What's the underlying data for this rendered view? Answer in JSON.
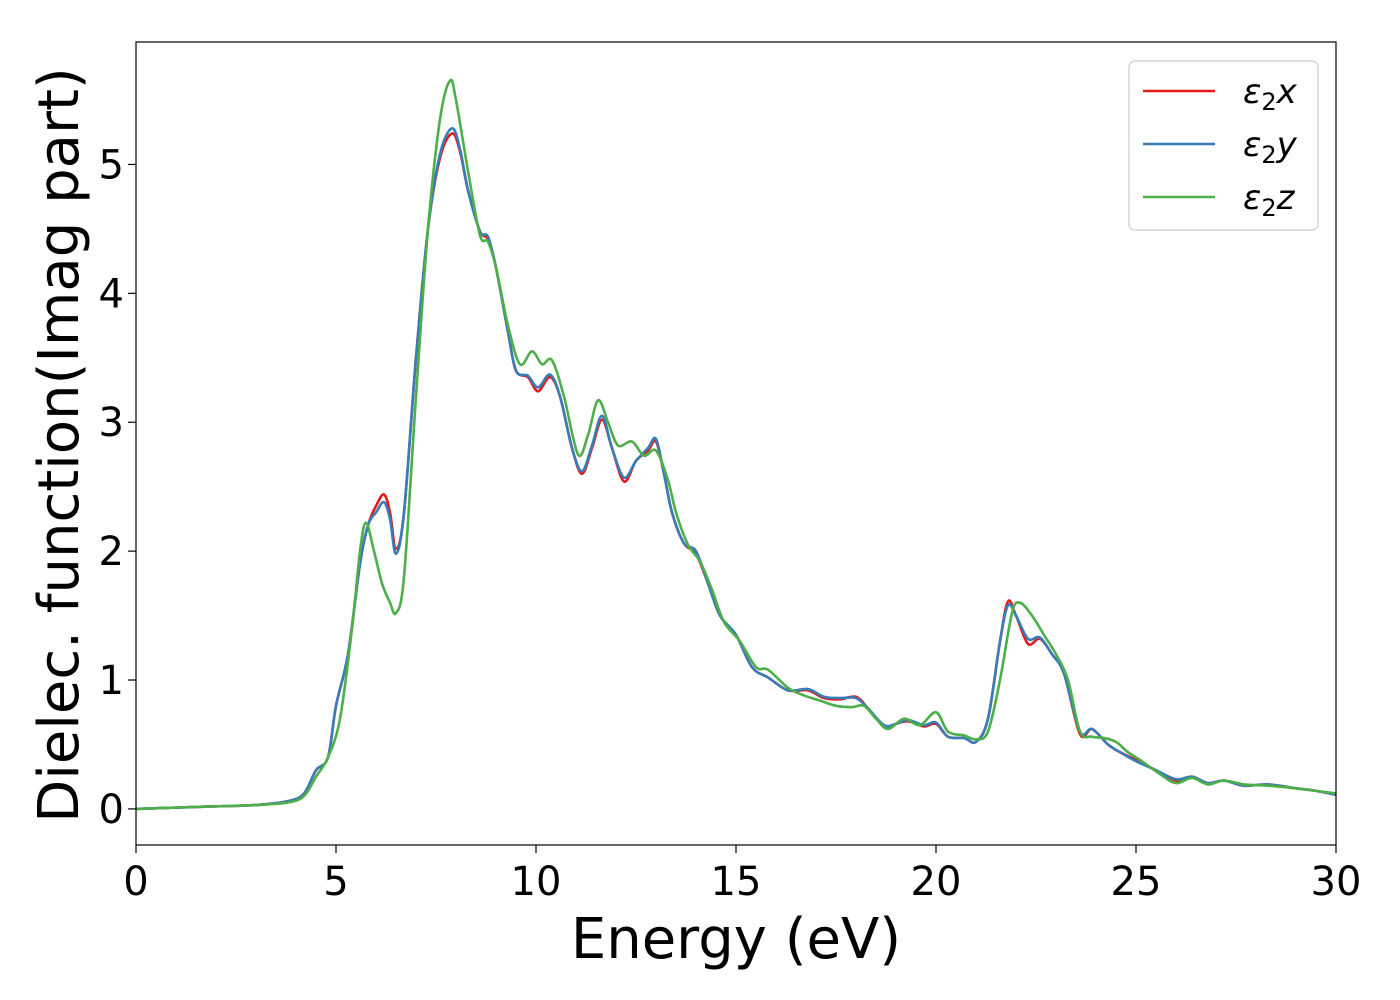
{
  "chart_data": {
    "type": "line",
    "xlabel": "Energy (eV)",
    "ylabel": "Dielec. function(Imag part)",
    "xlim": [
      0,
      30
    ],
    "ylim": [
      -0.28,
      5.95
    ],
    "xticks": [
      0,
      5,
      10,
      15,
      20,
      25,
      30
    ],
    "yticks": [
      0,
      1,
      2,
      3,
      4,
      5
    ],
    "grid": false,
    "legend_position": "top-right",
    "series": [
      {
        "name": "ε2x",
        "name_base": "ε",
        "name_sub": "2",
        "name_tail": "x",
        "color": "#e41a1c",
        "points": [
          [
            0,
            0.0
          ],
          [
            1,
            0.01
          ],
          [
            2,
            0.02
          ],
          [
            3,
            0.03
          ],
          [
            3.8,
            0.06
          ],
          [
            4.2,
            0.12
          ],
          [
            4.5,
            0.3
          ],
          [
            4.8,
            0.4
          ],
          [
            5.0,
            0.8
          ],
          [
            5.3,
            1.2
          ],
          [
            5.6,
            1.9
          ],
          [
            5.8,
            2.2
          ],
          [
            6.0,
            2.35
          ],
          [
            6.2,
            2.44
          ],
          [
            6.35,
            2.3
          ],
          [
            6.5,
            2.02
          ],
          [
            6.7,
            2.3
          ],
          [
            7.0,
            3.5
          ],
          [
            7.3,
            4.5
          ],
          [
            7.6,
            5.05
          ],
          [
            7.9,
            5.24
          ],
          [
            8.1,
            5.1
          ],
          [
            8.3,
            4.8
          ],
          [
            8.6,
            4.48
          ],
          [
            8.8,
            4.42
          ],
          [
            9.0,
            4.2
          ],
          [
            9.3,
            3.7
          ],
          [
            9.5,
            3.4
          ],
          [
            9.8,
            3.35
          ],
          [
            10.05,
            3.24
          ],
          [
            10.35,
            3.35
          ],
          [
            10.6,
            3.2
          ],
          [
            10.9,
            2.8
          ],
          [
            11.15,
            2.6
          ],
          [
            11.4,
            2.8
          ],
          [
            11.65,
            3.02
          ],
          [
            11.9,
            2.8
          ],
          [
            12.2,
            2.54
          ],
          [
            12.5,
            2.7
          ],
          [
            12.8,
            2.78
          ],
          [
            13.0,
            2.85
          ],
          [
            13.2,
            2.6
          ],
          [
            13.4,
            2.3
          ],
          [
            13.7,
            2.06
          ],
          [
            14.0,
            1.98
          ],
          [
            14.3,
            1.75
          ],
          [
            14.6,
            1.5
          ],
          [
            15.0,
            1.35
          ],
          [
            15.4,
            1.1
          ],
          [
            15.8,
            1.02
          ],
          [
            16.3,
            0.92
          ],
          [
            16.8,
            0.92
          ],
          [
            17.2,
            0.86
          ],
          [
            17.6,
            0.85
          ],
          [
            18.0,
            0.87
          ],
          [
            18.3,
            0.78
          ],
          [
            18.7,
            0.64
          ],
          [
            19.0,
            0.66
          ],
          [
            19.3,
            0.68
          ],
          [
            19.7,
            0.64
          ],
          [
            20.0,
            0.66
          ],
          [
            20.3,
            0.56
          ],
          [
            20.7,
            0.55
          ],
          [
            21.0,
            0.52
          ],
          [
            21.3,
            0.7
          ],
          [
            21.6,
            1.3
          ],
          [
            21.8,
            1.61
          ],
          [
            22.0,
            1.5
          ],
          [
            22.3,
            1.28
          ],
          [
            22.6,
            1.32
          ],
          [
            22.9,
            1.2
          ],
          [
            23.2,
            1.05
          ],
          [
            23.6,
            0.58
          ],
          [
            23.9,
            0.62
          ],
          [
            24.3,
            0.5
          ],
          [
            24.6,
            0.44
          ],
          [
            25.0,
            0.38
          ],
          [
            25.5,
            0.3
          ],
          [
            26.0,
            0.22
          ],
          [
            26.4,
            0.25
          ],
          [
            26.8,
            0.2
          ],
          [
            27.2,
            0.22
          ],
          [
            27.7,
            0.18
          ],
          [
            28.3,
            0.19
          ],
          [
            29.0,
            0.16
          ],
          [
            29.5,
            0.14
          ],
          [
            30.0,
            0.11
          ]
        ]
      },
      {
        "name": "ε2y",
        "name_base": "ε",
        "name_sub": "2",
        "name_tail": "y",
        "color": "#377eb8",
        "points": [
          [
            0,
            0.0
          ],
          [
            1,
            0.01
          ],
          [
            2,
            0.02
          ],
          [
            3,
            0.03
          ],
          [
            3.8,
            0.06
          ],
          [
            4.2,
            0.12
          ],
          [
            4.5,
            0.3
          ],
          [
            4.8,
            0.4
          ],
          [
            5.0,
            0.8
          ],
          [
            5.3,
            1.2
          ],
          [
            5.6,
            1.9
          ],
          [
            5.8,
            2.2
          ],
          [
            6.0,
            2.3
          ],
          [
            6.2,
            2.38
          ],
          [
            6.35,
            2.25
          ],
          [
            6.5,
            1.98
          ],
          [
            6.7,
            2.3
          ],
          [
            7.0,
            3.5
          ],
          [
            7.3,
            4.5
          ],
          [
            7.6,
            5.08
          ],
          [
            7.9,
            5.28
          ],
          [
            8.1,
            5.12
          ],
          [
            8.3,
            4.8
          ],
          [
            8.6,
            4.48
          ],
          [
            8.8,
            4.44
          ],
          [
            9.0,
            4.2
          ],
          [
            9.3,
            3.7
          ],
          [
            9.5,
            3.4
          ],
          [
            9.8,
            3.36
          ],
          [
            10.05,
            3.27
          ],
          [
            10.35,
            3.37
          ],
          [
            10.6,
            3.2
          ],
          [
            10.9,
            2.8
          ],
          [
            11.15,
            2.62
          ],
          [
            11.4,
            2.82
          ],
          [
            11.65,
            3.05
          ],
          [
            11.9,
            2.8
          ],
          [
            12.2,
            2.57
          ],
          [
            12.5,
            2.7
          ],
          [
            12.8,
            2.8
          ],
          [
            13.0,
            2.87
          ],
          [
            13.2,
            2.6
          ],
          [
            13.4,
            2.3
          ],
          [
            13.7,
            2.06
          ],
          [
            14.0,
            2.0
          ],
          [
            14.3,
            1.75
          ],
          [
            14.6,
            1.5
          ],
          [
            15.0,
            1.35
          ],
          [
            15.4,
            1.1
          ],
          [
            15.8,
            1.02
          ],
          [
            16.3,
            0.92
          ],
          [
            16.8,
            0.93
          ],
          [
            17.2,
            0.87
          ],
          [
            17.6,
            0.86
          ],
          [
            18.0,
            0.86
          ],
          [
            18.3,
            0.78
          ],
          [
            18.7,
            0.65
          ],
          [
            19.0,
            0.66
          ],
          [
            19.3,
            0.69
          ],
          [
            19.7,
            0.65
          ],
          [
            20.0,
            0.67
          ],
          [
            20.3,
            0.56
          ],
          [
            20.7,
            0.55
          ],
          [
            21.0,
            0.52
          ],
          [
            21.3,
            0.7
          ],
          [
            21.6,
            1.3
          ],
          [
            21.8,
            1.58
          ],
          [
            22.0,
            1.5
          ],
          [
            22.3,
            1.32
          ],
          [
            22.6,
            1.33
          ],
          [
            22.9,
            1.2
          ],
          [
            23.2,
            1.05
          ],
          [
            23.6,
            0.6
          ],
          [
            23.9,
            0.62
          ],
          [
            24.3,
            0.5
          ],
          [
            24.6,
            0.44
          ],
          [
            25.0,
            0.37
          ],
          [
            25.5,
            0.3
          ],
          [
            26.0,
            0.23
          ],
          [
            26.4,
            0.25
          ],
          [
            26.8,
            0.2
          ],
          [
            27.2,
            0.22
          ],
          [
            27.7,
            0.18
          ],
          [
            28.3,
            0.19
          ],
          [
            29.0,
            0.16
          ],
          [
            29.5,
            0.14
          ],
          [
            30.0,
            0.11
          ]
        ]
      },
      {
        "name": "ε2z",
        "name_base": "ε",
        "name_sub": "2",
        "name_tail": "z",
        "color": "#4daf4a",
        "points": [
          [
            0,
            0.0
          ],
          [
            1,
            0.01
          ],
          [
            2,
            0.02
          ],
          [
            3,
            0.03
          ],
          [
            3.8,
            0.05
          ],
          [
            4.2,
            0.1
          ],
          [
            4.5,
            0.25
          ],
          [
            4.8,
            0.4
          ],
          [
            5.1,
            0.7
          ],
          [
            5.4,
            1.4
          ],
          [
            5.6,
            2.0
          ],
          [
            5.75,
            2.22
          ],
          [
            5.95,
            2.0
          ],
          [
            6.15,
            1.75
          ],
          [
            6.35,
            1.6
          ],
          [
            6.5,
            1.52
          ],
          [
            6.7,
            1.8
          ],
          [
            7.0,
            3.2
          ],
          [
            7.3,
            4.5
          ],
          [
            7.6,
            5.35
          ],
          [
            7.85,
            5.65
          ],
          [
            8.0,
            5.5
          ],
          [
            8.3,
            4.95
          ],
          [
            8.6,
            4.45
          ],
          [
            8.8,
            4.4
          ],
          [
            9.0,
            4.2
          ],
          [
            9.3,
            3.75
          ],
          [
            9.6,
            3.45
          ],
          [
            9.9,
            3.55
          ],
          [
            10.15,
            3.45
          ],
          [
            10.4,
            3.48
          ],
          [
            10.7,
            3.2
          ],
          [
            11.05,
            2.75
          ],
          [
            11.3,
            2.9
          ],
          [
            11.55,
            3.17
          ],
          [
            11.8,
            3.0
          ],
          [
            12.05,
            2.82
          ],
          [
            12.4,
            2.85
          ],
          [
            12.7,
            2.74
          ],
          [
            13.0,
            2.78
          ],
          [
            13.3,
            2.55
          ],
          [
            13.5,
            2.3
          ],
          [
            13.8,
            2.05
          ],
          [
            14.1,
            1.92
          ],
          [
            14.4,
            1.7
          ],
          [
            14.7,
            1.45
          ],
          [
            15.1,
            1.3
          ],
          [
            15.5,
            1.1
          ],
          [
            15.8,
            1.08
          ],
          [
            16.3,
            0.94
          ],
          [
            16.7,
            0.88
          ],
          [
            17.1,
            0.84
          ],
          [
            17.5,
            0.8
          ],
          [
            17.9,
            0.79
          ],
          [
            18.2,
            0.8
          ],
          [
            18.5,
            0.7
          ],
          [
            18.8,
            0.62
          ],
          [
            19.2,
            0.7
          ],
          [
            19.6,
            0.65
          ],
          [
            20.0,
            0.75
          ],
          [
            20.3,
            0.6
          ],
          [
            20.7,
            0.57
          ],
          [
            21.0,
            0.54
          ],
          [
            21.3,
            0.6
          ],
          [
            21.6,
            1.0
          ],
          [
            21.9,
            1.52
          ],
          [
            22.1,
            1.6
          ],
          [
            22.4,
            1.5
          ],
          [
            22.7,
            1.35
          ],
          [
            23.0,
            1.2
          ],
          [
            23.3,
            1.0
          ],
          [
            23.6,
            0.6
          ],
          [
            23.9,
            0.56
          ],
          [
            24.2,
            0.55
          ],
          [
            24.5,
            0.52
          ],
          [
            24.8,
            0.44
          ],
          [
            25.1,
            0.38
          ],
          [
            25.6,
            0.27
          ],
          [
            26.0,
            0.2
          ],
          [
            26.4,
            0.24
          ],
          [
            26.8,
            0.19
          ],
          [
            27.2,
            0.22
          ],
          [
            27.7,
            0.19
          ],
          [
            28.3,
            0.18
          ],
          [
            29.0,
            0.16
          ],
          [
            29.5,
            0.14
          ],
          [
            30.0,
            0.12
          ]
        ]
      }
    ]
  }
}
